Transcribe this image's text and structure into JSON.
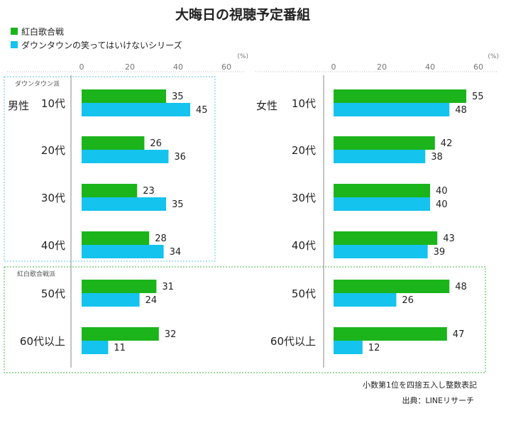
{
  "chart_data": {
    "type": "bar",
    "orientation": "horizontal",
    "title": "大晦日の視聴予定番組",
    "unit": "(%)",
    "xlim": [
      0,
      60
    ],
    "ticks": [
      "0",
      "20",
      "40",
      "60"
    ],
    "grid": false,
    "legend_position": "top-left",
    "categories": [
      "10代",
      "20代",
      "30代",
      "40代",
      "50代",
      "60代以上"
    ],
    "series": [
      {
        "name": "紅白歌合戦",
        "color": "#1bb41b"
      },
      {
        "name": "ダウンタウンの笑ってはいけないシリーズ",
        "color": "#14c3ee"
      }
    ],
    "panels": [
      {
        "gender": "男性",
        "values": [
          [
            35,
            45
          ],
          [
            26,
            36
          ],
          [
            23,
            35
          ],
          [
            28,
            34
          ],
          [
            31,
            24
          ],
          [
            32,
            11
          ]
        ]
      },
      {
        "gender": "女性",
        "values": [
          [
            55,
            48
          ],
          [
            42,
            38
          ],
          [
            40,
            40
          ],
          [
            43,
            39
          ],
          [
            48,
            26
          ],
          [
            47,
            12
          ]
        ]
      }
    ],
    "group_labels": {
      "downtown": "ダウンタウン派",
      "kohaku": "紅白歌合戦派"
    },
    "footnote": "小数第1位を四捨五入し整数表記",
    "source": "出典：LINEリサーチ"
  }
}
